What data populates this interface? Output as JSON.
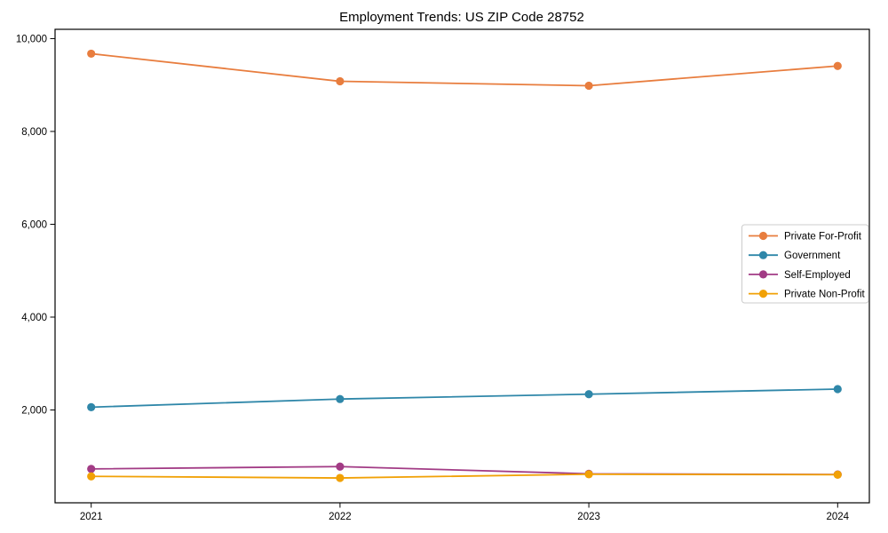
{
  "figure": {
    "background": "#ffffff",
    "frame_color": "#000000"
  },
  "chart_data": {
    "type": "line",
    "title": "Employment Trends: US ZIP Code 28752",
    "x": [
      2021,
      2022,
      2023,
      2024
    ],
    "xtick_labels": [
      "2021",
      "2022",
      "2023",
      "2024"
    ],
    "series": [
      {
        "name": "Private For-Profit",
        "color": "#e87d3e",
        "values": [
          9675,
          9080,
          8985,
          9410
        ]
      },
      {
        "name": "Government",
        "color": "#2f87a9",
        "values": [
          2060,
          2235,
          2340,
          2450
        ]
      },
      {
        "name": "Self-Employed",
        "color": "#a23b85",
        "values": [
          730,
          780,
          625,
          610
        ]
      },
      {
        "name": "Private Non-Profit",
        "color": "#f1a106",
        "values": [
          570,
          535,
          615,
          605
        ]
      }
    ],
    "yticks": [
      2000,
      4000,
      6000,
      8000,
      10000
    ],
    "ytick_labels": [
      "2,000",
      "4,000",
      "6,000",
      "8,000",
      "10,000"
    ],
    "ylim": [
      0,
      10200
    ],
    "grid": false,
    "legend_position": "center right",
    "legend_border_color": "#cccccc",
    "legend_background": "#ffffff",
    "marker": "circle",
    "xlabel": "",
    "ylabel": ""
  }
}
